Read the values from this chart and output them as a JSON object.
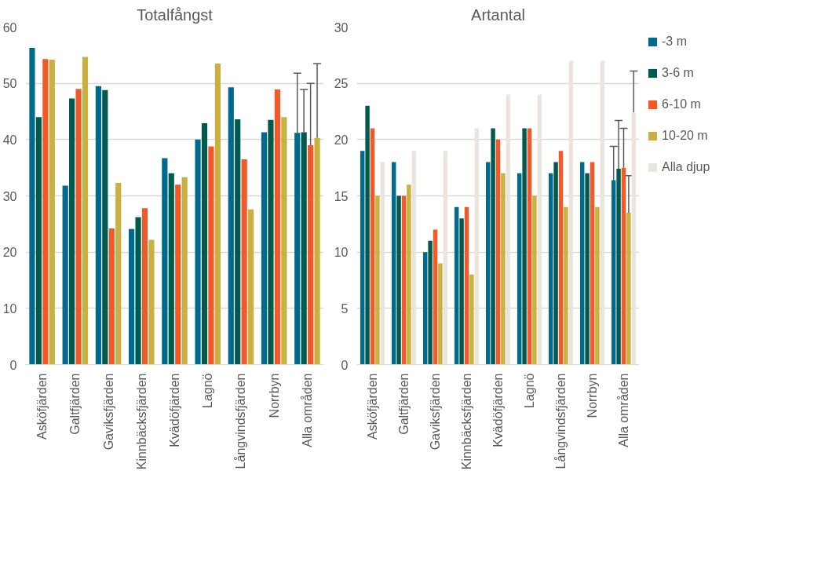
{
  "chart_data": [
    {
      "type": "bar",
      "title": "Totalfångst",
      "categories": [
        "Asköfjärden",
        "Galtfjärden",
        "Gaviksfjärden",
        "Kinnbäcksfjärden",
        "Kvädöfjärden",
        "Lagnö",
        "Långvindsfjärden",
        "Norrbyn",
        "Alla områden"
      ],
      "ylim": [
        0,
        60
      ],
      "yticks": [
        0,
        10,
        20,
        30,
        40,
        50,
        60
      ],
      "grid": "y",
      "legend": false,
      "series": [
        {
          "color": "#006a8e",
          "values": [
            56.3,
            31.8,
            49.5,
            24.1,
            36.7,
            40.0,
            49.3,
            41.3,
            41.2
          ],
          "errors": [
            null,
            null,
            null,
            null,
            null,
            null,
            null,
            null,
            [
              41.2,
              51.8
            ]
          ]
        },
        {
          "color": "#005a4e",
          "values": [
            44.0,
            47.3,
            48.8,
            26.2,
            34.0,
            42.9,
            43.6,
            43.5,
            41.3
          ],
          "errors": [
            null,
            null,
            null,
            null,
            null,
            null,
            null,
            null,
            [
              41.3,
              48.9
            ]
          ]
        },
        {
          "color": "#f05a28",
          "values": [
            54.3,
            49.0,
            24.2,
            27.8,
            32.0,
            38.8,
            36.5,
            48.9,
            39.0
          ],
          "errors": [
            null,
            null,
            null,
            null,
            null,
            null,
            null,
            null,
            [
              39.0,
              50.0
            ]
          ]
        },
        {
          "color": "#c9b03f",
          "values": [
            54.2,
            54.7,
            32.3,
            22.2,
            33.3,
            53.5,
            27.6,
            44.0,
            40.3
          ],
          "errors": [
            null,
            null,
            null,
            null,
            null,
            null,
            null,
            null,
            [
              40.3,
              53.5
            ]
          ]
        }
      ]
    },
    {
      "type": "bar",
      "title": "Artantal",
      "categories": [
        "Asköfjärden",
        "Galtfjärden",
        "Gaviksfjärden",
        "Kinnbäcksfjärden",
        "Kvädöfjärden",
        "Lagnö",
        "Långvindsfjärden",
        "Norrbyn",
        "Alla områden"
      ],
      "ylim": [
        0,
        30
      ],
      "yticks": [
        0,
        5,
        10,
        15,
        20,
        25,
        30
      ],
      "grid": "y",
      "legend": "right",
      "series": [
        {
          "name": "-3 m",
          "color": "#006a8e",
          "values": [
            19,
            18,
            10,
            14,
            18,
            17,
            17,
            18,
            16.4
          ],
          "errors": [
            null,
            null,
            null,
            null,
            null,
            null,
            null,
            null,
            [
              16.4,
              19.4
            ]
          ]
        },
        {
          "name": "3-6 m",
          "color": "#005a4e",
          "values": [
            23,
            15,
            11,
            13,
            21,
            21,
            18,
            17,
            17.4
          ],
          "errors": [
            null,
            null,
            null,
            null,
            null,
            null,
            null,
            null,
            [
              17.4,
              21.7
            ]
          ]
        },
        {
          "name": "6-10 m",
          "color": "#f05a28",
          "values": [
            21,
            15,
            12,
            14,
            20,
            21,
            19,
            18,
            17.5
          ],
          "errors": [
            null,
            null,
            null,
            null,
            null,
            null,
            null,
            null,
            [
              17.5,
              21.0
            ]
          ]
        },
        {
          "name": "10-20 m",
          "color": "#c9b03f",
          "values": [
            15,
            16,
            9,
            8,
            17,
            15,
            14,
            14,
            13.5
          ],
          "errors": [
            null,
            null,
            null,
            null,
            null,
            null,
            null,
            null,
            [
              13.5,
              16.8
            ]
          ]
        },
        {
          "name": "Alla djup",
          "color": "#ebe5dd",
          "values": [
            18,
            19,
            19,
            21,
            24,
            24,
            27,
            27,
            22.4
          ],
          "errors": [
            null,
            null,
            null,
            null,
            null,
            null,
            null,
            null,
            [
              22.4,
              26.1
            ]
          ]
        }
      ]
    }
  ]
}
